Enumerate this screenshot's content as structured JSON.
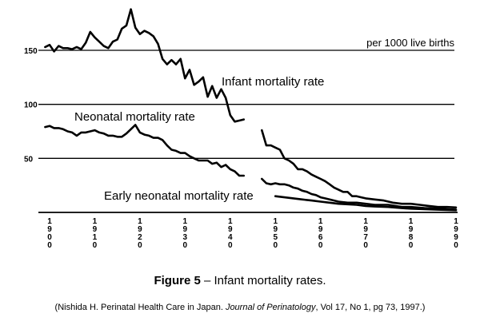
{
  "chart_data": {
    "type": "line",
    "unit_label": "per 1000 live births",
    "ylim": [
      0,
      165
    ],
    "yticks": [
      50,
      100,
      150
    ],
    "xlim": [
      1900,
      1990
    ],
    "xticks": [
      "1900",
      "1910",
      "1920",
      "1930",
      "1940",
      "1950",
      "1960",
      "1970",
      "1980",
      "1990"
    ],
    "grid": "horizontal",
    "series": [
      {
        "name": "Infant mortality rate",
        "segments": [
          [
            [
              1899,
              153
            ],
            [
              1900,
              155
            ],
            [
              1901,
              149
            ],
            [
              1902,
              154
            ],
            [
              1903,
              152
            ],
            [
              1904,
              152
            ],
            [
              1905,
              151
            ],
            [
              1906,
              153
            ],
            [
              1907,
              151
            ],
            [
              1908,
              157
            ],
            [
              1909,
              167
            ],
            [
              1910,
              162
            ],
            [
              1911,
              158
            ],
            [
              1912,
              154
            ],
            [
              1913,
              152
            ],
            [
              1914,
              158
            ],
            [
              1915,
              160
            ],
            [
              1916,
              170
            ],
            [
              1917,
              173
            ],
            [
              1918,
              188
            ],
            [
              1919,
              171
            ],
            [
              1920,
              165
            ],
            [
              1921,
              168
            ],
            [
              1922,
              166
            ],
            [
              1923,
              163
            ],
            [
              1924,
              156
            ],
            [
              1925,
              142
            ],
            [
              1926,
              137
            ],
            [
              1927,
              141
            ],
            [
              1928,
              137
            ],
            [
              1929,
              142
            ],
            [
              1930,
              124
            ],
            [
              1931,
              132
            ],
            [
              1932,
              118
            ],
            [
              1933,
              121
            ],
            [
              1934,
              125
            ],
            [
              1935,
              107
            ],
            [
              1936,
              117
            ],
            [
              1937,
              106
            ],
            [
              1938,
              114
            ],
            [
              1939,
              106
            ],
            [
              1940,
              90
            ],
            [
              1941,
              84
            ],
            [
              1942,
              85
            ],
            [
              1943,
              86
            ]
          ],
          [
            [
              1947,
              76
            ],
            [
              1948,
              62
            ],
            [
              1949,
              62
            ],
            [
              1950,
              60
            ],
            [
              1951,
              58
            ],
            [
              1952,
              50
            ],
            [
              1953,
              48
            ],
            [
              1954,
              45
            ],
            [
              1955,
              40
            ],
            [
              1956,
              40
            ],
            [
              1957,
              38
            ],
            [
              1958,
              35
            ],
            [
              1959,
              33
            ],
            [
              1960,
              31
            ],
            [
              1961,
              29
            ],
            [
              1962,
              26
            ],
            [
              1963,
              23
            ],
            [
              1964,
              21
            ],
            [
              1965,
              19
            ],
            [
              1966,
              19
            ],
            [
              1967,
              15
            ],
            [
              1968,
              15
            ],
            [
              1969,
              14
            ],
            [
              1970,
              13
            ],
            [
              1972,
              12
            ],
            [
              1974,
              11
            ],
            [
              1976,
              9
            ],
            [
              1978,
              8
            ],
            [
              1980,
              8
            ],
            [
              1982,
              7
            ],
            [
              1984,
              6
            ],
            [
              1986,
              5
            ],
            [
              1988,
              5
            ],
            [
              1990,
              4.6
            ]
          ]
        ]
      },
      {
        "name": "Neonatal mortality rate",
        "segments": [
          [
            [
              1899,
              79
            ],
            [
              1900,
              80
            ],
            [
              1901,
              78
            ],
            [
              1902,
              78
            ],
            [
              1903,
              77
            ],
            [
              1904,
              75
            ],
            [
              1905,
              74
            ],
            [
              1906,
              71
            ],
            [
              1907,
              74
            ],
            [
              1908,
              74
            ],
            [
              1909,
              75
            ],
            [
              1910,
              76
            ],
            [
              1911,
              74
            ],
            [
              1912,
              73
            ],
            [
              1913,
              71
            ],
            [
              1914,
              71
            ],
            [
              1915,
              70
            ],
            [
              1916,
              70
            ],
            [
              1917,
              73
            ],
            [
              1918,
              77
            ],
            [
              1919,
              81
            ],
            [
              1920,
              74
            ],
            [
              1921,
              72
            ],
            [
              1922,
              71
            ],
            [
              1923,
              69
            ],
            [
              1924,
              69
            ],
            [
              1925,
              67
            ],
            [
              1926,
              62
            ],
            [
              1927,
              58
            ],
            [
              1928,
              57
            ],
            [
              1929,
              55
            ],
            [
              1930,
              55
            ],
            [
              1931,
              52
            ],
            [
              1932,
              50
            ],
            [
              1933,
              48
            ],
            [
              1934,
              48
            ],
            [
              1935,
              48
            ],
            [
              1936,
              45
            ],
            [
              1937,
              46
            ],
            [
              1938,
              42
            ],
            [
              1939,
              44
            ],
            [
              1940,
              40
            ],
            [
              1941,
              38
            ],
            [
              1942,
              34
            ],
            [
              1943,
              34
            ]
          ],
          [
            [
              1947,
              31
            ],
            [
              1948,
              27
            ],
            [
              1949,
              26
            ],
            [
              1950,
              27
            ],
            [
              1951,
              26
            ],
            [
              1952,
              26
            ],
            [
              1953,
              25
            ],
            [
              1954,
              23
            ],
            [
              1955,
              22
            ],
            [
              1956,
              20
            ],
            [
              1957,
              19
            ],
            [
              1958,
              17
            ],
            [
              1959,
              16
            ],
            [
              1960,
              14
            ],
            [
              1961,
              13
            ],
            [
              1962,
              12
            ],
            [
              1963,
              11
            ],
            [
              1964,
              10
            ],
            [
              1966,
              9
            ],
            [
              1968,
              9
            ],
            [
              1970,
              8
            ],
            [
              1972,
              7
            ],
            [
              1975,
              7
            ],
            [
              1978,
              5
            ],
            [
              1980,
              5
            ],
            [
              1983,
              4
            ],
            [
              1986,
              3.5
            ],
            [
              1990,
              2.6
            ]
          ]
        ]
      },
      {
        "name": "Early neonatal mortality rate",
        "segments": [
          [
            [
              1950,
              15
            ],
            [
              1952,
              14
            ],
            [
              1954,
              13
            ],
            [
              1956,
              12
            ],
            [
              1958,
              11
            ],
            [
              1960,
              10
            ],
            [
              1962,
              9
            ],
            [
              1964,
              8
            ],
            [
              1966,
              7.5
            ],
            [
              1968,
              7
            ],
            [
              1970,
              6
            ],
            [
              1972,
              5.5
            ],
            [
              1975,
              5
            ],
            [
              1978,
              4
            ],
            [
              1980,
              3.5
            ],
            [
              1983,
              3
            ],
            [
              1986,
              2.5
            ],
            [
              1990,
              2
            ]
          ]
        ]
      }
    ]
  },
  "caption": {
    "figure_label": "Figure 5",
    "text": " – Infant mortality rates."
  },
  "source": {
    "before": "(Nishida H.  Perinatal Health Care in Japan. ",
    "journal": "Journal of Perinatology",
    "after": ", Vol 17, No 1, pg 73, 1997.)"
  }
}
